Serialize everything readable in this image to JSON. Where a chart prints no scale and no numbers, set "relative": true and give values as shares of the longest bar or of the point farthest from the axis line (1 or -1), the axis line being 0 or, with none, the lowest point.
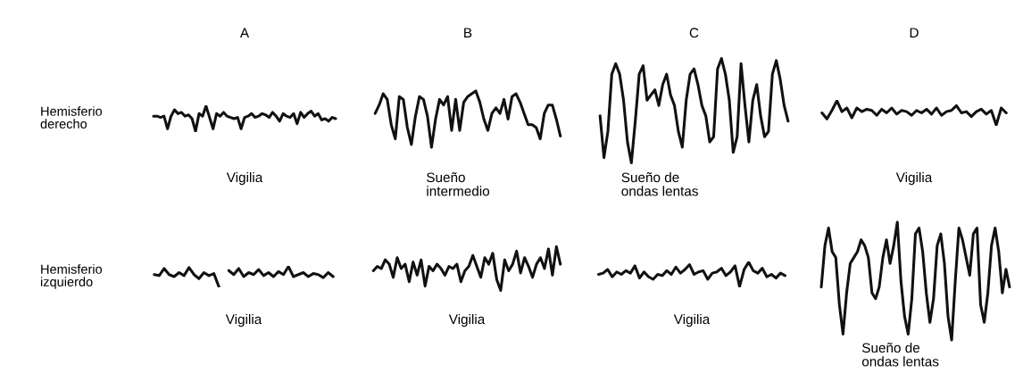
{
  "chart_data": [
    {
      "type": "line",
      "relative": true,
      "title": "A",
      "ylabel": "Hemisferio\nderecho",
      "xlabel": "Vigilia",
      "tick_labels": false,
      "color": "#111111",
      "categories": [
        null,
        null,
        null,
        null,
        null,
        null,
        null,
        null,
        null,
        null,
        null,
        null,
        null,
        null,
        null,
        null,
        null,
        null,
        null,
        null,
        null,
        null,
        null,
        null,
        null,
        null,
        null,
        null,
        null,
        null,
        null,
        null,
        null,
        null,
        null,
        null,
        null,
        null,
        null,
        null,
        null,
        null,
        null,
        null,
        null,
        null,
        null,
        null,
        null,
        null,
        null,
        null,
        null
      ],
      "values": [
        0.6,
        0.6,
        0.55,
        0.6,
        0.1,
        0.6,
        0.85,
        0.7,
        0.75,
        0.6,
        0.65,
        0.5,
        0.0,
        0.7,
        0.6,
        1.0,
        0.55,
        0.1,
        0.7,
        0.6,
        0.75,
        0.6,
        0.55,
        0.5,
        0.55,
        0.1,
        0.55,
        0.6,
        0.7,
        0.55,
        0.6,
        0.7,
        0.65,
        0.55,
        0.75,
        0.6,
        0.4,
        0.7,
        0.6,
        0.55,
        0.7,
        0.3,
        0.75,
        0.55,
        0.7,
        0.8,
        0.6,
        0.7,
        0.45,
        0.5,
        0.4,
        0.55,
        0.5
      ]
    },
    {
      "type": "line",
      "relative": true,
      "title": "B",
      "xlabel": "Sueño\nintermedio",
      "tick_labels": false,
      "color": "#111111",
      "categories": [
        null,
        null,
        null,
        null,
        null,
        null,
        null,
        null,
        null,
        null,
        null,
        null,
        null,
        null,
        null,
        null,
        null,
        null,
        null,
        null,
        null,
        null,
        null,
        null,
        null,
        null,
        null,
        null,
        null,
        null,
        null,
        null,
        null,
        null,
        null,
        null,
        null,
        null,
        null,
        null,
        null,
        null,
        null,
        null,
        null,
        null,
        null
      ],
      "values": [
        0.6,
        0.75,
        0.95,
        0.85,
        0.4,
        0.15,
        0.9,
        0.85,
        0.35,
        0.05,
        0.55,
        0.9,
        0.85,
        0.55,
        0.0,
        0.5,
        0.85,
        0.75,
        0.9,
        0.3,
        0.85,
        0.3,
        0.8,
        0.9,
        0.95,
        1.0,
        0.8,
        0.5,
        0.3,
        0.6,
        0.7,
        0.6,
        0.85,
        0.5,
        0.9,
        0.95,
        0.8,
        0.6,
        0.4,
        0.4,
        0.35,
        0.15,
        0.6,
        0.75,
        0.75,
        0.5,
        0.2
      ]
    },
    {
      "type": "line",
      "relative": true,
      "title": "C",
      "xlabel": "Sueño de\nondas lentas",
      "tick_labels": false,
      "color": "#111111",
      "categories": [
        null,
        null,
        null,
        null,
        null,
        null,
        null,
        null,
        null,
        null,
        null,
        null,
        null,
        null,
        null,
        null,
        null,
        null,
        null,
        null,
        null,
        null,
        null,
        null,
        null,
        null,
        null,
        null,
        null,
        null,
        null,
        null,
        null,
        null,
        null,
        null,
        null,
        null,
        null,
        null,
        null,
        null,
        null,
        null,
        null,
        null,
        null,
        null,
        null
      ],
      "values": [
        0.45,
        0.05,
        0.3,
        0.85,
        0.95,
        0.85,
        0.6,
        0.2,
        0.0,
        0.4,
        0.85,
        0.93,
        0.6,
        0.65,
        0.7,
        0.55,
        0.75,
        0.85,
        0.65,
        0.55,
        0.3,
        0.15,
        0.6,
        0.85,
        0.9,
        0.75,
        0.55,
        0.45,
        0.2,
        0.25,
        0.9,
        1.0,
        0.85,
        0.6,
        0.1,
        0.25,
        0.95,
        0.55,
        0.2,
        0.6,
        0.75,
        0.45,
        0.25,
        0.3,
        0.85,
        0.98,
        0.8,
        0.55,
        0.4
      ]
    },
    {
      "type": "line",
      "relative": true,
      "title": "D",
      "xlabel": "Vigilia",
      "tick_labels": false,
      "color": "#111111",
      "categories": [
        null,
        null,
        null,
        null,
        null,
        null,
        null,
        null,
        null,
        null,
        null,
        null,
        null,
        null,
        null,
        null,
        null,
        null,
        null,
        null,
        null,
        null,
        null,
        null,
        null,
        null,
        null,
        null,
        null,
        null,
        null,
        null,
        null,
        null,
        null,
        null,
        null,
        null
      ],
      "values": [
        0.5,
        0.25,
        0.6,
        1.0,
        0.55,
        0.7,
        0.3,
        0.7,
        0.55,
        0.65,
        0.6,
        0.4,
        0.65,
        0.5,
        0.7,
        0.45,
        0.6,
        0.55,
        0.4,
        0.6,
        0.5,
        0.65,
        0.45,
        0.7,
        0.4,
        0.55,
        0.6,
        0.8,
        0.5,
        0.55,
        0.35,
        0.55,
        0.65,
        0.45,
        0.6,
        0.0,
        0.7,
        0.5
      ]
    },
    {
      "type": "line",
      "relative": true,
      "ylabel": "Hemisferio\nizquierdo",
      "xlabel": "Vigilia",
      "tick_labels": false,
      "categories": [
        null,
        null,
        null,
        null,
        null,
        null,
        null,
        null,
        null,
        null,
        null,
        null,
        null,
        null,
        null,
        null,
        null,
        null,
        null,
        null,
        null,
        null,
        null,
        null,
        null,
        null,
        null,
        null,
        null,
        null,
        null,
        null,
        null,
        null,
        null,
        null,
        null
      ],
      "series": [
        {
          "color": "#111111",
          "values": [
            0.6,
            0.55,
            0.9,
            0.6,
            0.5,
            0.7,
            0.55,
            0.95,
            0.6,
            0.4,
            0.7,
            0.55,
            0.65,
            0.0,
            null,
            null,
            null,
            null,
            null,
            null,
            null,
            null,
            null,
            null,
            null,
            null,
            null,
            null,
            null,
            null,
            null,
            null,
            null,
            null,
            null,
            null,
            null
          ]
        },
        {
          "color": "#111111",
          "values": [
            null,
            null,
            null,
            null,
            null,
            null,
            null,
            null,
            null,
            null,
            null,
            null,
            null,
            null,
            null,
            0.8,
            0.6,
            0.9,
            0.5,
            0.7,
            0.6,
            0.85,
            0.55,
            0.7,
            0.5,
            0.75,
            0.6,
            1.0,
            0.5,
            0.6,
            0.7,
            0.5,
            0.65,
            0.6,
            0.45,
            0.7,
            0.5
          ]
        }
      ]
    },
    {
      "type": "line",
      "relative": true,
      "xlabel": "Vigilia",
      "tick_labels": false,
      "color": "#111111",
      "categories": [
        null,
        null,
        null,
        null,
        null,
        null,
        null,
        null,
        null,
        null,
        null,
        null,
        null,
        null,
        null,
        null,
        null,
        null,
        null,
        null,
        null,
        null,
        null,
        null,
        null,
        null,
        null,
        null,
        null,
        null,
        null,
        null,
        null,
        null,
        null,
        null,
        null,
        null,
        null,
        null,
        null,
        null,
        null,
        null,
        null,
        null,
        null,
        null
      ],
      "values": [
        0.45,
        0.55,
        0.5,
        0.7,
        0.6,
        0.3,
        0.75,
        0.5,
        0.6,
        0.2,
        0.65,
        0.35,
        0.7,
        0.1,
        0.55,
        0.45,
        0.6,
        0.5,
        0.35,
        0.55,
        0.5,
        0.6,
        0.2,
        0.45,
        0.55,
        0.8,
        0.55,
        0.3,
        0.75,
        0.6,
        0.85,
        0.25,
        0.0,
        0.7,
        0.45,
        0.6,
        0.9,
        0.4,
        0.75,
        0.55,
        0.3,
        0.6,
        0.75,
        0.5,
        0.95,
        0.35,
        1.0,
        0.6
      ]
    },
    {
      "type": "line",
      "relative": true,
      "xlabel": "Vigilia",
      "tick_labels": false,
      "color": "#111111",
      "categories": [
        null,
        null,
        null,
        null,
        null,
        null,
        null,
        null,
        null,
        null,
        null,
        null,
        null,
        null,
        null,
        null,
        null,
        null,
        null,
        null,
        null,
        null,
        null,
        null,
        null,
        null,
        null,
        null,
        null,
        null,
        null,
        null,
        null,
        null,
        null,
        null,
        null,
        null,
        null,
        null,
        null,
        null
      ],
      "values": [
        0.5,
        0.55,
        0.7,
        0.4,
        0.6,
        0.5,
        0.65,
        0.55,
        0.85,
        0.35,
        0.6,
        0.4,
        0.3,
        0.5,
        0.45,
        0.65,
        0.5,
        0.8,
        0.55,
        0.7,
        0.9,
        0.5,
        0.6,
        0.65,
        0.3,
        0.55,
        0.6,
        0.75,
        0.45,
        0.6,
        0.85,
        0.0,
        0.7,
        1.0,
        0.65,
        0.55,
        0.75,
        0.4,
        0.5,
        0.35,
        0.55,
        0.45
      ]
    },
    {
      "type": "line",
      "relative": true,
      "xlabel": "Sueño de\nondas lentas",
      "tick_labels": false,
      "color": "#111111",
      "categories": [
        null,
        null,
        null,
        null,
        null,
        null,
        null,
        null,
        null,
        null,
        null,
        null,
        null,
        null,
        null,
        null,
        null,
        null,
        null,
        null,
        null,
        null,
        null,
        null,
        null,
        null,
        null,
        null,
        null,
        null,
        null,
        null,
        null,
        null,
        null,
        null,
        null,
        null,
        null,
        null,
        null,
        null,
        null,
        null,
        null,
        null,
        null,
        null,
        null,
        null,
        null,
        null,
        null
      ],
      "values": [
        0.45,
        0.8,
        0.95,
        0.75,
        0.7,
        0.3,
        0.05,
        0.4,
        0.65,
        0.7,
        0.75,
        0.85,
        0.8,
        0.7,
        0.4,
        0.35,
        0.45,
        0.7,
        0.85,
        0.65,
        0.8,
        1.0,
        0.5,
        0.2,
        0.05,
        0.35,
        0.9,
        0.95,
        0.75,
        0.4,
        0.15,
        0.35,
        0.8,
        0.9,
        0.65,
        0.2,
        0.0,
        0.5,
        0.95,
        0.85,
        0.7,
        0.55,
        0.9,
        0.95,
        0.3,
        0.15,
        0.4,
        0.8,
        0.95,
        0.75,
        0.4,
        0.6,
        0.45
      ]
    }
  ]
}
